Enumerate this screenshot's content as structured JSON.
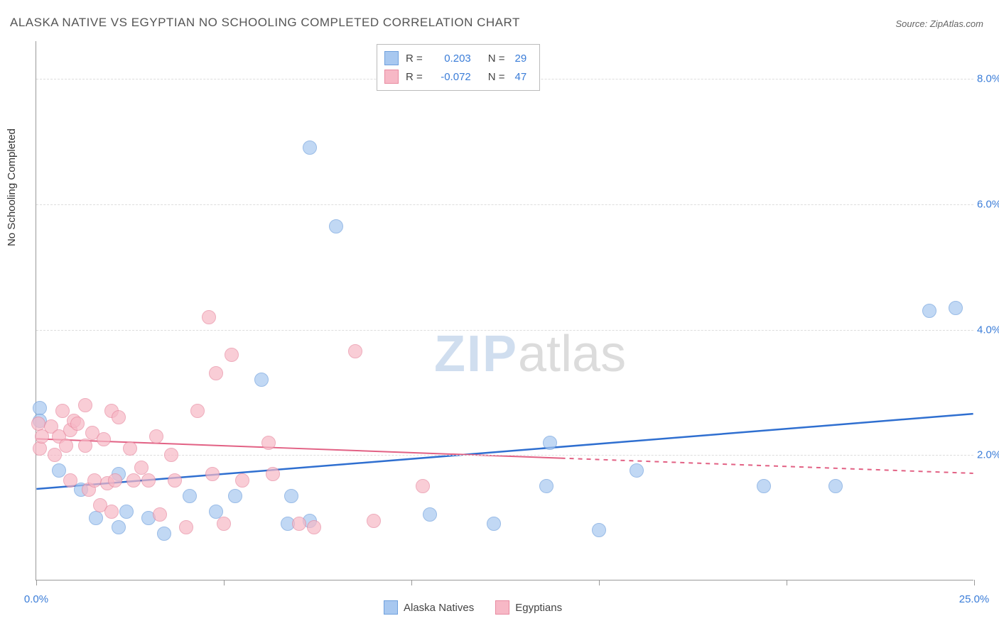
{
  "title": "ALASKA NATIVE VS EGYPTIAN NO SCHOOLING COMPLETED CORRELATION CHART",
  "source_prefix": "Source: ",
  "source_name": "ZipAtlas.com",
  "y_axis_label": "No Schooling Completed",
  "watermark_bold": "ZIP",
  "watermark_light": "atlas",
  "chart": {
    "type": "scatter",
    "x_range": [
      0,
      25
    ],
    "y_range": [
      0,
      8.6
    ],
    "x_ticks": [
      0,
      5,
      10,
      15,
      20,
      25
    ],
    "x_tick_labels_shown": {
      "0": "0.0%",
      "25": "25.0%"
    },
    "y_ticks": [
      2,
      4,
      6,
      8
    ],
    "y_tick_labels": [
      "2.0%",
      "4.0%",
      "6.0%",
      "8.0%"
    ],
    "background_color": "#ffffff",
    "grid_color": "#dddddd",
    "axis_color": "#999999",
    "tick_label_color": "#3b7dd8",
    "point_radius": 10,
    "point_border_width": 1,
    "point_fill_opacity": 0.45,
    "series": [
      {
        "name": "Alaska Natives",
        "color_fill": "#a8c8f0",
        "color_border": "#6fa0dd",
        "R": "0.203",
        "N": "29",
        "trend": {
          "x1": 0,
          "y1": 1.45,
          "x2": 25,
          "y2": 2.65,
          "color": "#2f6fd0",
          "width": 2.5,
          "dash_after_x": null
        },
        "points": [
          [
            0.1,
            2.75
          ],
          [
            0.1,
            2.55
          ],
          [
            0.6,
            1.75
          ],
          [
            1.2,
            1.45
          ],
          [
            1.6,
            1.0
          ],
          [
            2.2,
            0.85
          ],
          [
            2.4,
            1.1
          ],
          [
            2.2,
            1.7
          ],
          [
            3.0,
            1.0
          ],
          [
            3.4,
            0.75
          ],
          [
            4.1,
            1.35
          ],
          [
            4.8,
            1.1
          ],
          [
            5.3,
            1.35
          ],
          [
            6.0,
            3.2
          ],
          [
            6.7,
            0.9
          ],
          [
            6.8,
            1.35
          ],
          [
            7.3,
            0.95
          ],
          [
            7.3,
            6.9
          ],
          [
            8.0,
            5.65
          ],
          [
            10.5,
            1.05
          ],
          [
            12.2,
            0.9
          ],
          [
            13.6,
            1.5
          ],
          [
            13.7,
            2.2
          ],
          [
            15.0,
            0.8
          ],
          [
            16.0,
            1.75
          ],
          [
            19.4,
            1.5
          ],
          [
            21.3,
            1.5
          ],
          [
            23.8,
            4.3
          ],
          [
            24.5,
            4.35
          ]
        ]
      },
      {
        "name": "Egyptians",
        "color_fill": "#f7b8c6",
        "color_border": "#e88aa0",
        "R": "-0.072",
        "N": "47",
        "trend": {
          "x1": 0,
          "y1": 2.25,
          "x2": 25,
          "y2": 1.7,
          "color": "#e26184",
          "width": 2,
          "dash_after_x": 14
        },
        "points": [
          [
            0.05,
            2.5
          ],
          [
            0.1,
            2.1
          ],
          [
            0.15,
            2.3
          ],
          [
            0.4,
            2.45
          ],
          [
            0.5,
            2.0
          ],
          [
            0.6,
            2.3
          ],
          [
            0.7,
            2.7
          ],
          [
            0.8,
            2.15
          ],
          [
            0.9,
            2.4
          ],
          [
            0.9,
            1.6
          ],
          [
            1.0,
            2.55
          ],
          [
            1.1,
            2.5
          ],
          [
            1.3,
            2.8
          ],
          [
            1.3,
            2.15
          ],
          [
            1.4,
            1.45
          ],
          [
            1.5,
            2.35
          ],
          [
            1.55,
            1.6
          ],
          [
            1.7,
            1.2
          ],
          [
            1.8,
            2.25
          ],
          [
            1.9,
            1.55
          ],
          [
            2.0,
            2.7
          ],
          [
            2.0,
            1.1
          ],
          [
            2.1,
            1.6
          ],
          [
            2.2,
            2.6
          ],
          [
            2.5,
            2.1
          ],
          [
            2.6,
            1.6
          ],
          [
            2.8,
            1.8
          ],
          [
            3.0,
            1.6
          ],
          [
            3.2,
            2.3
          ],
          [
            3.3,
            1.05
          ],
          [
            3.6,
            2.0
          ],
          [
            3.7,
            1.6
          ],
          [
            4.0,
            0.85
          ],
          [
            4.3,
            2.7
          ],
          [
            4.6,
            4.2
          ],
          [
            4.7,
            1.7
          ],
          [
            4.8,
            3.3
          ],
          [
            5.0,
            0.9
          ],
          [
            5.2,
            3.6
          ],
          [
            5.5,
            1.6
          ],
          [
            6.2,
            2.2
          ],
          [
            6.3,
            1.7
          ],
          [
            7.0,
            0.9
          ],
          [
            7.4,
            0.85
          ],
          [
            8.5,
            3.65
          ],
          [
            9.0,
            0.95
          ],
          [
            10.3,
            1.5
          ]
        ]
      }
    ]
  },
  "legend_labels": {
    "R": "R =",
    "N": "N ="
  },
  "bottom_legend": [
    "Alaska Natives",
    "Egyptians"
  ]
}
